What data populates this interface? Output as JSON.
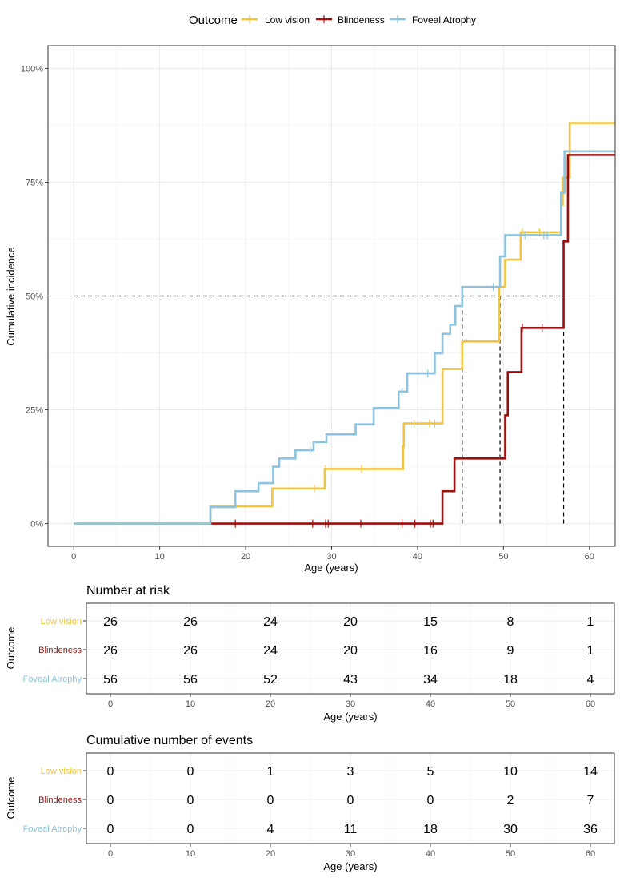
{
  "colors": {
    "low_vision": "#F2C440",
    "blindness": "#9B0E0E",
    "foveal_atrophy": "#8EC3DD"
  },
  "legend": {
    "title": "Outcome",
    "items": [
      "Low vision",
      "Blindeness",
      "Foveal Atrophy"
    ]
  },
  "chart_data": [
    {
      "type": "line",
      "subtype": "step",
      "title": "",
      "xlabel": "Age (years)",
      "ylabel": "Cumulative incidence",
      "xlim": [
        -3,
        63
      ],
      "ylim": [
        -0.05,
        1.05
      ],
      "x_ticks": [
        0,
        10,
        20,
        30,
        40,
        50,
        60
      ],
      "y_ticks": [
        0,
        0.25,
        0.5,
        0.75,
        1.0
      ],
      "y_tick_labels": [
        "0%",
        "25%",
        "50%",
        "75%",
        "100%"
      ],
      "series": [
        {
          "name": "Low vision",
          "color": "#F2C440",
          "steps": [
            [
              0,
              0
            ],
            [
              15.9,
              0.038
            ],
            [
              23.1,
              0.077
            ],
            [
              29.2,
              0.12
            ],
            [
              38.3,
              0.17
            ],
            [
              38.4,
              0.22
            ],
            [
              42.9,
              0.28
            ],
            [
              42.9,
              0.34
            ],
            [
              45.2,
              0.4
            ],
            [
              49.5,
              0.52
            ],
            [
              50.2,
              0.58
            ],
            [
              52.0,
              0.64
            ],
            [
              56.7,
              0.7
            ],
            [
              56.9,
              0.76
            ],
            [
              57.7,
              0.88
            ],
            [
              63,
              0.88
            ]
          ],
          "censor_x": [
            28.0,
            29.3,
            33.5,
            39.6,
            41.4,
            42.0,
            52.2,
            54.2
          ]
        },
        {
          "name": "Blindeness",
          "color": "#9B0E0E",
          "steps": [
            [
              15.9,
              0
            ],
            [
              42.9,
              0.071
            ],
            [
              44.3,
              0.143
            ],
            [
              50.2,
              0.238
            ],
            [
              50.5,
              0.333
            ],
            [
              52.1,
              0.43
            ],
            [
              57.0,
              0.62
            ],
            [
              57.5,
              0.81
            ],
            [
              63,
              0.81
            ]
          ],
          "censor_x": [
            18.8,
            27.8,
            29.3,
            29.6,
            33.4,
            38.2,
            39.7,
            41.5,
            41.8,
            52.2,
            54.5
          ]
        },
        {
          "name": "Foveal Atrophy",
          "color": "#8EC3DD",
          "steps": [
            [
              0,
              0
            ],
            [
              15.9,
              0.036
            ],
            [
              18.8,
              0.071
            ],
            [
              21.5,
              0.089
            ],
            [
              23.2,
              0.125
            ],
            [
              23.9,
              0.143
            ],
            [
              25.8,
              0.161
            ],
            [
              27.9,
              0.179
            ],
            [
              29.4,
              0.196
            ],
            [
              32.8,
              0.218
            ],
            [
              34.9,
              0.254
            ],
            [
              37.8,
              0.29
            ],
            [
              38.8,
              0.33
            ],
            [
              42.0,
              0.374
            ],
            [
              42.9,
              0.417
            ],
            [
              43.8,
              0.437
            ],
            [
              44.4,
              0.478
            ],
            [
              45.2,
              0.52
            ],
            [
              49.6,
              0.587
            ],
            [
              50.2,
              0.634
            ],
            [
              56.7,
              0.727
            ],
            [
              57.1,
              0.818
            ],
            [
              63,
              0.818
            ]
          ],
          "censor_x": [
            27.5,
            38.2,
            41.2,
            48.8,
            52.5,
            54.7,
            55.1
          ]
        }
      ],
      "median_lines": [
        45.2,
        49.6,
        57.0
      ]
    },
    {
      "type": "table",
      "title": "Number at risk",
      "xlabel": "Age (years)",
      "ylabel": "Outcome",
      "x_ticks": [
        0,
        10,
        20,
        30,
        40,
        50,
        60
      ],
      "rows": [
        {
          "name": "Low vision",
          "values": [
            26,
            26,
            24,
            20,
            15,
            8,
            1
          ]
        },
        {
          "name": "Blindeness",
          "values": [
            26,
            26,
            24,
            20,
            16,
            9,
            1
          ]
        },
        {
          "name": "Foveal Atrophy",
          "values": [
            56,
            56,
            52,
            43,
            34,
            18,
            4
          ]
        }
      ]
    },
    {
      "type": "table",
      "title": "Cumulative number of events",
      "xlabel": "Age (years)",
      "ylabel": "Outcome",
      "x_ticks": [
        0,
        10,
        20,
        30,
        40,
        50,
        60
      ],
      "rows": [
        {
          "name": "Low vision",
          "values": [
            0,
            0,
            1,
            3,
            5,
            10,
            14
          ]
        },
        {
          "name": "Blindeness",
          "values": [
            0,
            0,
            0,
            0,
            0,
            2,
            7
          ]
        },
        {
          "name": "Foveal Atrophy",
          "values": [
            0,
            0,
            4,
            11,
            18,
            30,
            36
          ]
        }
      ]
    }
  ]
}
